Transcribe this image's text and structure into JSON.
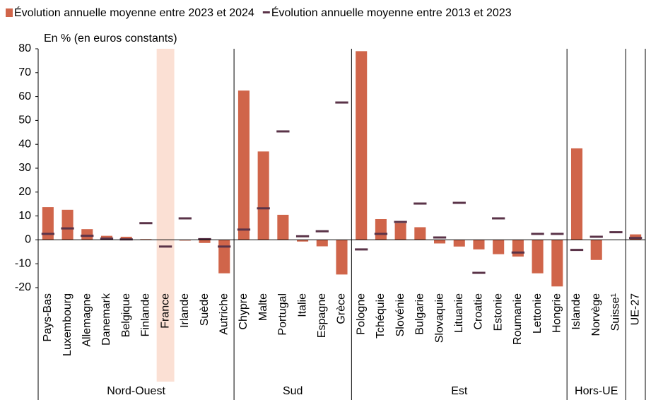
{
  "chart_data": {
    "type": "bar",
    "y_label": "En % (en euros constants)",
    "categories": [
      "Pays-Bas",
      "Luxembourg",
      "Allemagne",
      "Danemark",
      "Belgique",
      "Finlande",
      "France",
      "Irlande",
      "Suède",
      "Autriche",
      "Chypre",
      "Malte",
      "Portugal",
      "Italie",
      "Espagne",
      "Grèce",
      "Pologne",
      "Tchéquie",
      "Slovénie",
      "Bulgarie",
      "Slovaquie",
      "Lituanie",
      "Croatie",
      "Estonie",
      "Roumanie",
      "Lettonie",
      "Hongrie",
      "Islande",
      "Norvège",
      "Suisse¹",
      "UE-27"
    ],
    "series": [
      {
        "name": "Évolution annuelle moyenne entre 2023 et 2024",
        "color": "#d0654a",
        "mark": "bar",
        "values": [
          13.7,
          12.6,
          4.5,
          1.7,
          1.3,
          0.3,
          0,
          -0.3,
          -1.3,
          -14,
          62.5,
          37,
          10.5,
          -0.7,
          -2.7,
          -14.5,
          79,
          8.7,
          7,
          5.3,
          -1.5,
          -2.8,
          -4,
          -6,
          -7,
          -14,
          -19.5,
          38.3,
          -8.4,
          0,
          2.3
        ]
      },
      {
        "name": "Évolution annuelle moyenne entre 2013 et 2023",
        "color": "#5a3348",
        "mark": "dash",
        "values": [
          2.5,
          4.8,
          1.7,
          0.5,
          0.2,
          7,
          -2.8,
          9,
          0.3,
          -2.8,
          4.3,
          13.2,
          45.4,
          1.5,
          3.6,
          57.5,
          -4,
          2.5,
          7.5,
          15.2,
          1,
          15.5,
          -13.8,
          9,
          -5.3,
          2.5,
          2.5,
          -4.2,
          1.3,
          3.2,
          0.8
        ]
      }
    ],
    "groups": [
      {
        "label": "Nord-Ouest",
        "count": 10
      },
      {
        "label": "Sud",
        "count": 6
      },
      {
        "label": "Est",
        "count": 11
      },
      {
        "label": "Hors-UE",
        "count": 3
      }
    ],
    "highlight": {
      "category": 6,
      "color": "#fbe0d4"
    },
    "ylim": [
      -20,
      80
    ],
    "yticks": [
      -20,
      -10,
      0,
      10,
      20,
      30,
      40,
      50,
      60,
      70,
      80
    ],
    "grid": false
  }
}
